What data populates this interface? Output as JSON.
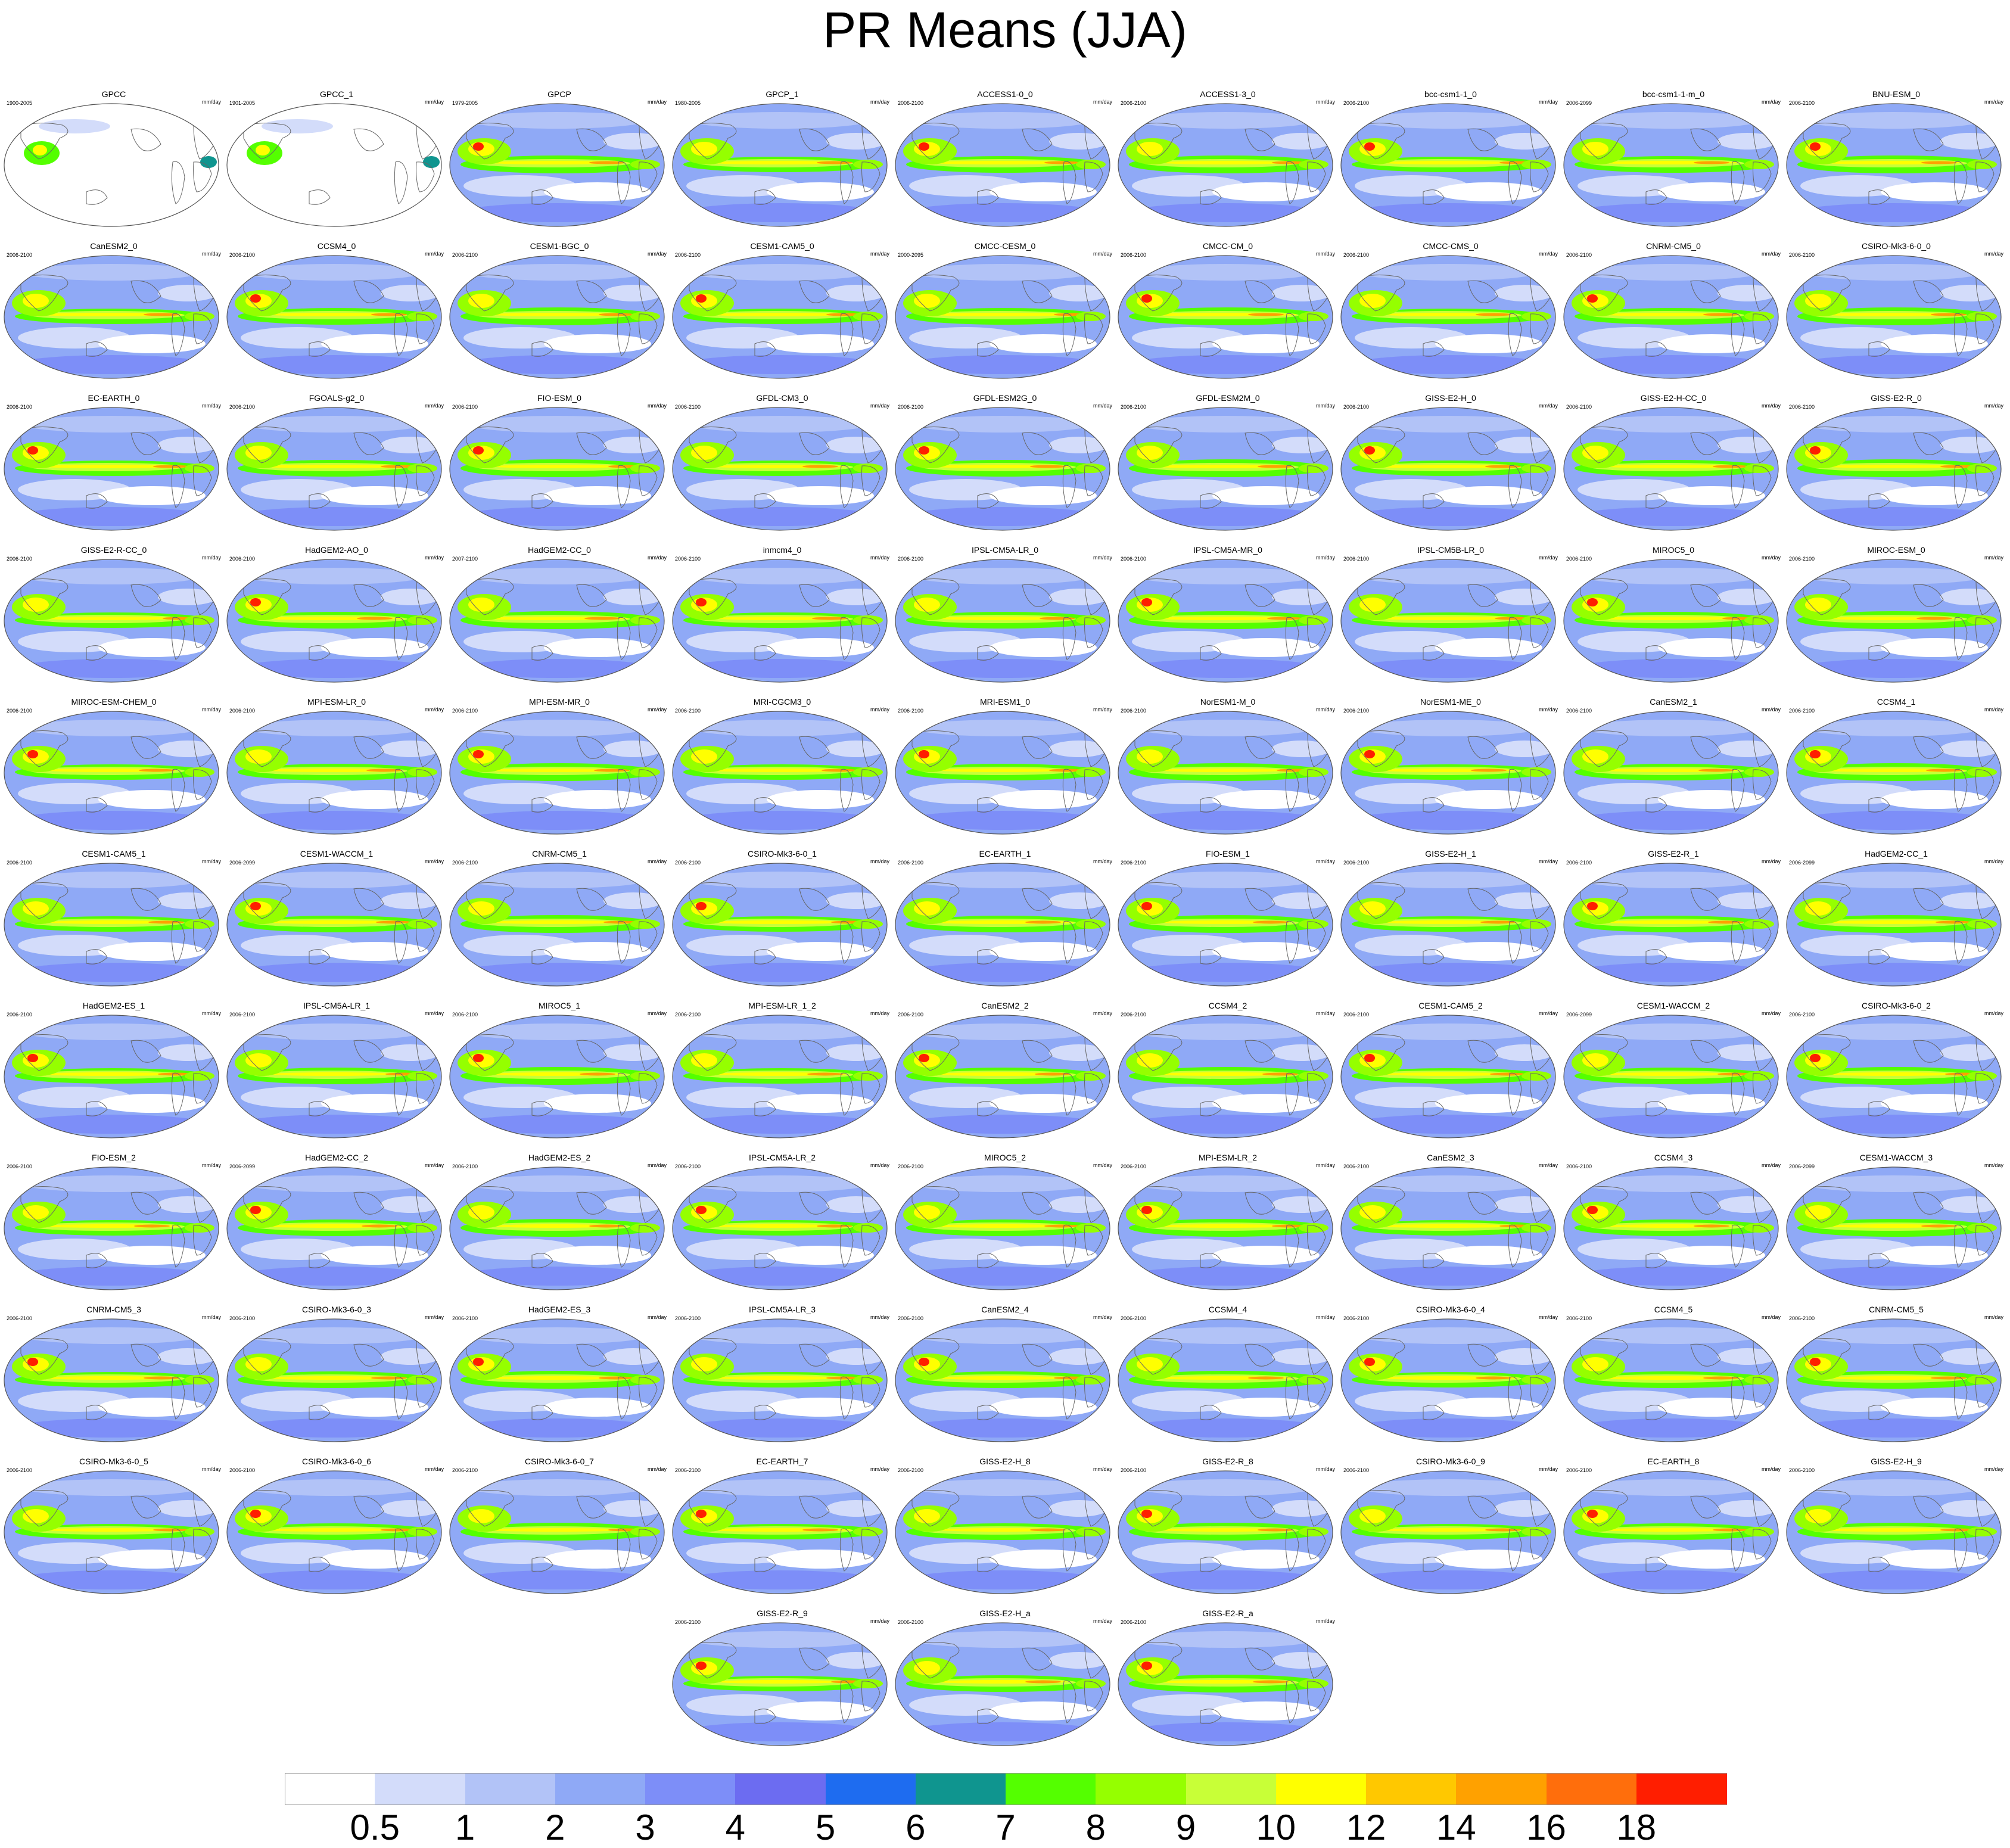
{
  "figure": {
    "title": "PR Means (JJA)"
  },
  "units_label": "mm/day",
  "colorbar": {
    "levels": [
      "0.5",
      "1",
      "2",
      "3",
      "4",
      "5",
      "6",
      "7",
      "8",
      "9",
      "10",
      "12",
      "14",
      "16",
      "18"
    ],
    "colors": [
      "#ffffff",
      "#d3dcfa",
      "#b2c3f7",
      "#8fa9f6",
      "#7d8ef8",
      "#6c6cf1",
      "#1e6cf0",
      "#0f958f",
      "#54ff00",
      "#95ff00",
      "#c8ff37",
      "#ffff00",
      "#ffc800",
      "#ffa100",
      "#ff6e0c",
      "#ff1e00"
    ]
  },
  "chart_data": {
    "type": "heatmap",
    "title": "PR Means (JJA)",
    "units": "mm/day",
    "levels": [
      0.5,
      1,
      2,
      3,
      4,
      5,
      6,
      7,
      8,
      9,
      10,
      12,
      14,
      16,
      18
    ],
    "panels": [
      {
        "name": "GPCC",
        "years": "1900-2005"
      },
      {
        "name": "GPCC_1",
        "years": "1901-2005"
      },
      {
        "name": "GPCP",
        "years": "1979-2005"
      },
      {
        "name": "GPCP_1",
        "years": "1980-2005"
      },
      {
        "name": "ACCESS1-0_0",
        "years": "2006-2100"
      },
      {
        "name": "ACCESS1-3_0",
        "years": "2006-2100"
      },
      {
        "name": "bcc-csm1-1_0",
        "years": "2006-2100"
      },
      {
        "name": "bcc-csm1-1-m_0",
        "years": "2006-2099"
      },
      {
        "name": "BNU-ESM_0",
        "years": "2006-2100"
      },
      {
        "name": "CanESM2_0",
        "years": "2006-2100"
      },
      {
        "name": "CCSM4_0",
        "years": "2006-2100"
      },
      {
        "name": "CESM1-BGC_0",
        "years": "2006-2100"
      },
      {
        "name": "CESM1-CAM5_0",
        "years": "2006-2100"
      },
      {
        "name": "CMCC-CESM_0",
        "years": "2000-2095"
      },
      {
        "name": "CMCC-CM_0",
        "years": "2006-2100"
      },
      {
        "name": "CMCC-CMS_0",
        "years": "2006-2100"
      },
      {
        "name": "CNRM-CM5_0",
        "years": "2006-2100"
      },
      {
        "name": "CSIRO-Mk3-6-0_0",
        "years": "2006-2100"
      },
      {
        "name": "EC-EARTH_0",
        "years": "2006-2100"
      },
      {
        "name": "FGOALS-g2_0",
        "years": "2006-2100"
      },
      {
        "name": "FIO-ESM_0",
        "years": "2006-2100"
      },
      {
        "name": "GFDL-CM3_0",
        "years": "2006-2100"
      },
      {
        "name": "GFDL-ESM2G_0",
        "years": "2006-2100"
      },
      {
        "name": "GFDL-ESM2M_0",
        "years": "2006-2100"
      },
      {
        "name": "GISS-E2-H_0",
        "years": "2006-2100"
      },
      {
        "name": "GISS-E2-H-CC_0",
        "years": "2006-2100"
      },
      {
        "name": "GISS-E2-R_0",
        "years": "2006-2100"
      },
      {
        "name": "GISS-E2-R-CC_0",
        "years": "2006-2100"
      },
      {
        "name": "HadGEM2-AO_0",
        "years": "2006-2100"
      },
      {
        "name": "HadGEM2-CC_0",
        "years": "2007-2100"
      },
      {
        "name": "inmcm4_0",
        "years": "2006-2100"
      },
      {
        "name": "IPSL-CM5A-LR_0",
        "years": "2006-2100"
      },
      {
        "name": "IPSL-CM5A-MR_0",
        "years": "2006-2100"
      },
      {
        "name": "IPSL-CM5B-LR_0",
        "years": "2006-2100"
      },
      {
        "name": "MIROC5_0",
        "years": "2006-2100"
      },
      {
        "name": "MIROC-ESM_0",
        "years": "2006-2100"
      },
      {
        "name": "MIROC-ESM-CHEM_0",
        "years": "2006-2100"
      },
      {
        "name": "MPI-ESM-LR_0",
        "years": "2006-2100"
      },
      {
        "name": "MPI-ESM-MR_0",
        "years": "2006-2100"
      },
      {
        "name": "MRI-CGCM3_0",
        "years": "2006-2100"
      },
      {
        "name": "MRI-ESM1_0",
        "years": "2006-2100"
      },
      {
        "name": "NorESM1-M_0",
        "years": "2006-2100"
      },
      {
        "name": "NorESM1-ME_0",
        "years": "2006-2100"
      },
      {
        "name": "CanESM2_1",
        "years": "2006-2100"
      },
      {
        "name": "CCSM4_1",
        "years": "2006-2100"
      },
      {
        "name": "CESM1-CAM5_1",
        "years": "2006-2100"
      },
      {
        "name": "CESM1-WACCM_1",
        "years": "2006-2099"
      },
      {
        "name": "CNRM-CM5_1",
        "years": "2006-2100"
      },
      {
        "name": "CSIRO-Mk3-6-0_1",
        "years": "2006-2100"
      },
      {
        "name": "EC-EARTH_1",
        "years": "2006-2100"
      },
      {
        "name": "FIO-ESM_1",
        "years": "2006-2100"
      },
      {
        "name": "GISS-E2-H_1",
        "years": "2006-2100"
      },
      {
        "name": "GISS-E2-R_1",
        "years": "2006-2100"
      },
      {
        "name": "HadGEM2-CC_1",
        "years": "2006-2099"
      },
      {
        "name": "HadGEM2-ES_1",
        "years": "2006-2100"
      },
      {
        "name": "IPSL-CM5A-LR_1",
        "years": "2006-2100"
      },
      {
        "name": "MIROC5_1",
        "years": "2006-2100"
      },
      {
        "name": "MPI-ESM-LR_1_2",
        "years": "2006-2100"
      },
      {
        "name": "CanESM2_2",
        "years": "2006-2100"
      },
      {
        "name": "CCSM4_2",
        "years": "2006-2100"
      },
      {
        "name": "CESM1-CAM5_2",
        "years": "2006-2100"
      },
      {
        "name": "CESM1-WACCM_2",
        "years": "2006-2099"
      },
      {
        "name": "CSIRO-Mk3-6-0_2",
        "years": "2006-2100"
      },
      {
        "name": "FIO-ESM_2",
        "years": "2006-2100"
      },
      {
        "name": "HadGEM2-CC_2",
        "years": "2006-2099"
      },
      {
        "name": "HadGEM2-ES_2",
        "years": "2006-2100"
      },
      {
        "name": "IPSL-CM5A-LR_2",
        "years": "2006-2100"
      },
      {
        "name": "MIROC5_2",
        "years": "2006-2100"
      },
      {
        "name": "MPI-ESM-LR_2",
        "years": "2006-2100"
      },
      {
        "name": "CanESM2_3",
        "years": "2006-2100"
      },
      {
        "name": "CCSM4_3",
        "years": "2006-2100"
      },
      {
        "name": "CESM1-WACCM_3",
        "years": "2006-2099"
      },
      {
        "name": "CNRM-CM5_3",
        "years": "2006-2100"
      },
      {
        "name": "CSIRO-Mk3-6-0_3",
        "years": "2006-2100"
      },
      {
        "name": "HadGEM2-ES_3",
        "years": "2006-2100"
      },
      {
        "name": "IPSL-CM5A-LR_3",
        "years": "2006-2100"
      },
      {
        "name": "CanESM2_4",
        "years": "2006-2100"
      },
      {
        "name": "CCSM4_4",
        "years": "2006-2100"
      },
      {
        "name": "CSIRO-Mk3-6-0_4",
        "years": "2006-2100"
      },
      {
        "name": "CCSM4_5",
        "years": "2006-2100"
      },
      {
        "name": "CNRM-CM5_5",
        "years": "2006-2100"
      },
      {
        "name": "CSIRO-Mk3-6-0_5",
        "years": "2006-2100"
      },
      {
        "name": "CSIRO-Mk3-6-0_6",
        "years": "2006-2100"
      },
      {
        "name": "CSIRO-Mk3-6-0_7",
        "years": "2006-2100"
      },
      {
        "name": "EC-EARTH_7",
        "years": "2006-2100"
      },
      {
        "name": "GISS-E2-H_8",
        "years": "2006-2100"
      },
      {
        "name": "GISS-E2-R_8",
        "years": "2006-2100"
      },
      {
        "name": "CSIRO-Mk3-6-0_9",
        "years": "2006-2100"
      },
      {
        "name": "EC-EARTH_8",
        "years": "2006-2100"
      },
      {
        "name": "GISS-E2-H_9",
        "years": "2006-2100"
      },
      {
        "name": "GISS-E2-R_9",
        "years": "2006-2100"
      },
      {
        "name": "GISS-E2-H_a",
        "years": "2006-2100"
      },
      {
        "name": "GISS-E2-R_a",
        "years": "2006-2100"
      }
    ]
  }
}
